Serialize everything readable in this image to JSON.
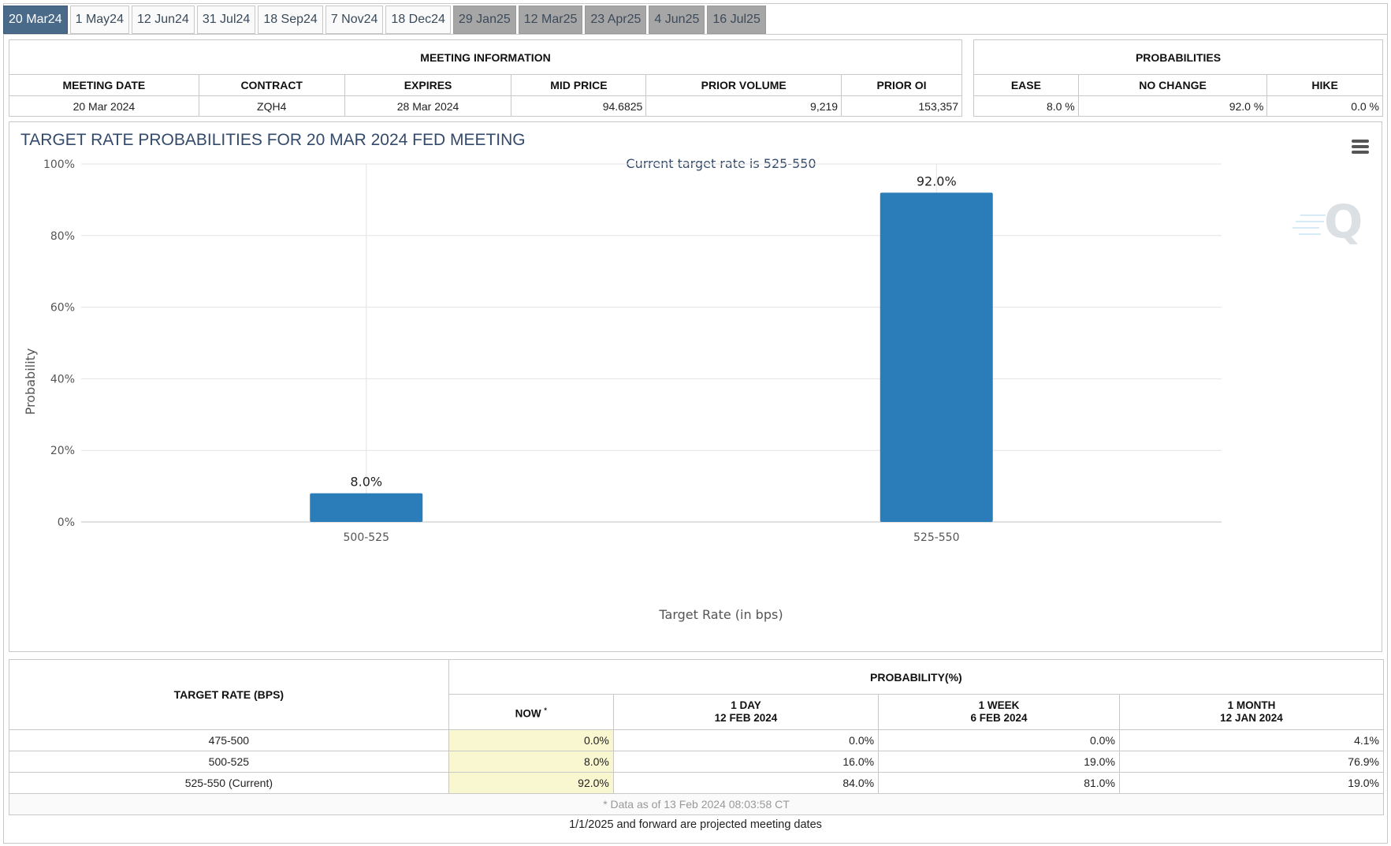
{
  "tabs": [
    {
      "label": "20 Mar24",
      "state": "active"
    },
    {
      "label": "1 May24",
      "state": "normal"
    },
    {
      "label": "12 Jun24",
      "state": "normal"
    },
    {
      "label": "31 Jul24",
      "state": "normal"
    },
    {
      "label": "18 Sep24",
      "state": "normal"
    },
    {
      "label": "7 Nov24",
      "state": "normal"
    },
    {
      "label": "18 Dec24",
      "state": "normal"
    },
    {
      "label": "29 Jan25",
      "state": "future"
    },
    {
      "label": "12 Mar25",
      "state": "future"
    },
    {
      "label": "23 Apr25",
      "state": "future"
    },
    {
      "label": "4 Jun25",
      "state": "future"
    },
    {
      "label": "16 Jul25",
      "state": "future"
    }
  ],
  "meeting_info": {
    "title": "MEETING INFORMATION",
    "headers": [
      "MEETING DATE",
      "CONTRACT",
      "EXPIRES",
      "MID PRICE",
      "PRIOR VOLUME",
      "PRIOR OI"
    ],
    "values": [
      "20 Mar 2024",
      "ZQH4",
      "28 Mar 2024",
      "94.6825",
      "9,219",
      "153,357"
    ]
  },
  "probabilities": {
    "title": "PROBABILITIES",
    "headers": [
      "EASE",
      "NO CHANGE",
      "HIKE"
    ],
    "values": [
      "8.0 %",
      "92.0 %",
      "0.0 %"
    ]
  },
  "chart_data": {
    "type": "bar",
    "title": "TARGET RATE PROBABILITIES FOR 20 MAR 2024 FED MEETING",
    "subtitle": "Current target rate is 525-550",
    "xlabel": "Target Rate (in bps)",
    "ylabel": "Probability",
    "categories": [
      "500-525",
      "525-550"
    ],
    "values": [
      8.0,
      92.0
    ],
    "data_labels": [
      "8.0%",
      "92.0%"
    ],
    "ylim": [
      0,
      100
    ],
    "yticks": [
      0,
      20,
      40,
      60,
      80,
      100
    ],
    "ytick_labels": [
      "0%",
      "20%",
      "40%",
      "60%",
      "80%",
      "100%"
    ],
    "bar_color": "#2a7db8",
    "grid": true,
    "legend": "none"
  },
  "prob_table": {
    "col1_header": "TARGET RATE (BPS)",
    "group_header": "PROBABILITY(%)",
    "now_header": "NOW",
    "now_mark": "*",
    "periods": [
      {
        "label": "1 DAY",
        "date": "12 FEB 2024"
      },
      {
        "label": "1 WEEK",
        "date": "6 FEB 2024"
      },
      {
        "label": "1 MONTH",
        "date": "12 JAN 2024"
      }
    ],
    "rows": [
      {
        "rate": "475-500",
        "now": "0.0%",
        "day": "0.0%",
        "week": "0.0%",
        "month": "4.1%"
      },
      {
        "rate": "500-525",
        "now": "8.0%",
        "day": "16.0%",
        "week": "19.0%",
        "month": "76.9%"
      },
      {
        "rate": "525-550 (Current)",
        "now": "92.0%",
        "day": "84.0%",
        "week": "81.0%",
        "month": "19.0%"
      }
    ],
    "note": "* Data as of 13 Feb 2024 08:03:58 CT"
  },
  "footnote": "1/1/2025 and forward are projected meeting dates",
  "colors": {
    "accent": "#4a6a8a",
    "now_highlight": "#f9f7cf",
    "bar": "#2a7db8"
  }
}
